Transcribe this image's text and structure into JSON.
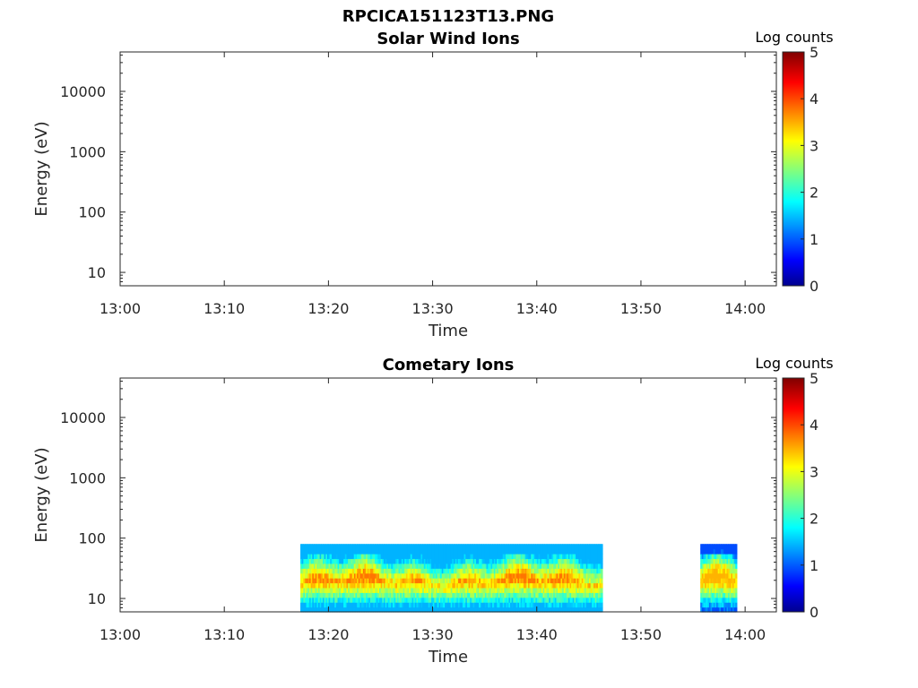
{
  "figure": {
    "title": "RPCICA151123T13.PNG"
  },
  "colors": {
    "axis": "#262626",
    "text": "#000000",
    "background": "#ffffff"
  },
  "chart_data": [
    {
      "type": "heatmap",
      "title": "Solar Wind Ions",
      "xlabel": "Time",
      "ylabel": "Energy (eV)",
      "xticks": [
        "13:00",
        "13:10",
        "13:20",
        "13:30",
        "13:40",
        "13:50",
        "14:00"
      ],
      "xlim": [
        "13:00",
        "14:03"
      ],
      "yscale": "log",
      "ylim": [
        6,
        45000
      ],
      "yticks": [
        "10",
        "100",
        "1000",
        "10000"
      ],
      "colorbar": {
        "label": "Log counts",
        "range": [
          0,
          5
        ],
        "ticks": [
          "0",
          "1",
          "2",
          "3",
          "4",
          "5"
        ],
        "colormap": "jet"
      },
      "segments": []
    },
    {
      "type": "heatmap",
      "title": "Cometary Ions",
      "xlabel": "Time",
      "ylabel": "Energy (eV)",
      "xticks": [
        "13:00",
        "13:10",
        "13:20",
        "13:30",
        "13:40",
        "13:50",
        "14:00"
      ],
      "xlim": [
        "13:00",
        "14:03"
      ],
      "yscale": "log",
      "ylim": [
        6,
        45000
      ],
      "yticks": [
        "10",
        "100",
        "1000",
        "10000"
      ],
      "colorbar": {
        "label": "Log counts",
        "range": [
          0,
          5
        ],
        "ticks": [
          "0",
          "1",
          "2",
          "3",
          "4",
          "5"
        ],
        "colormap": "jet"
      },
      "segments": [
        {
          "start": "13:17.3",
          "end": "13:46.3",
          "max_energy_ev": 80,
          "min_energy_ev": 6,
          "typical_log_counts": [
            1.5,
            3.8
          ]
        },
        {
          "start": "13:55.7",
          "end": "13:59.2",
          "max_energy_ev": 80,
          "min_energy_ev": 6,
          "typical_log_counts": [
            1.0,
            3.5
          ]
        }
      ]
    }
  ]
}
